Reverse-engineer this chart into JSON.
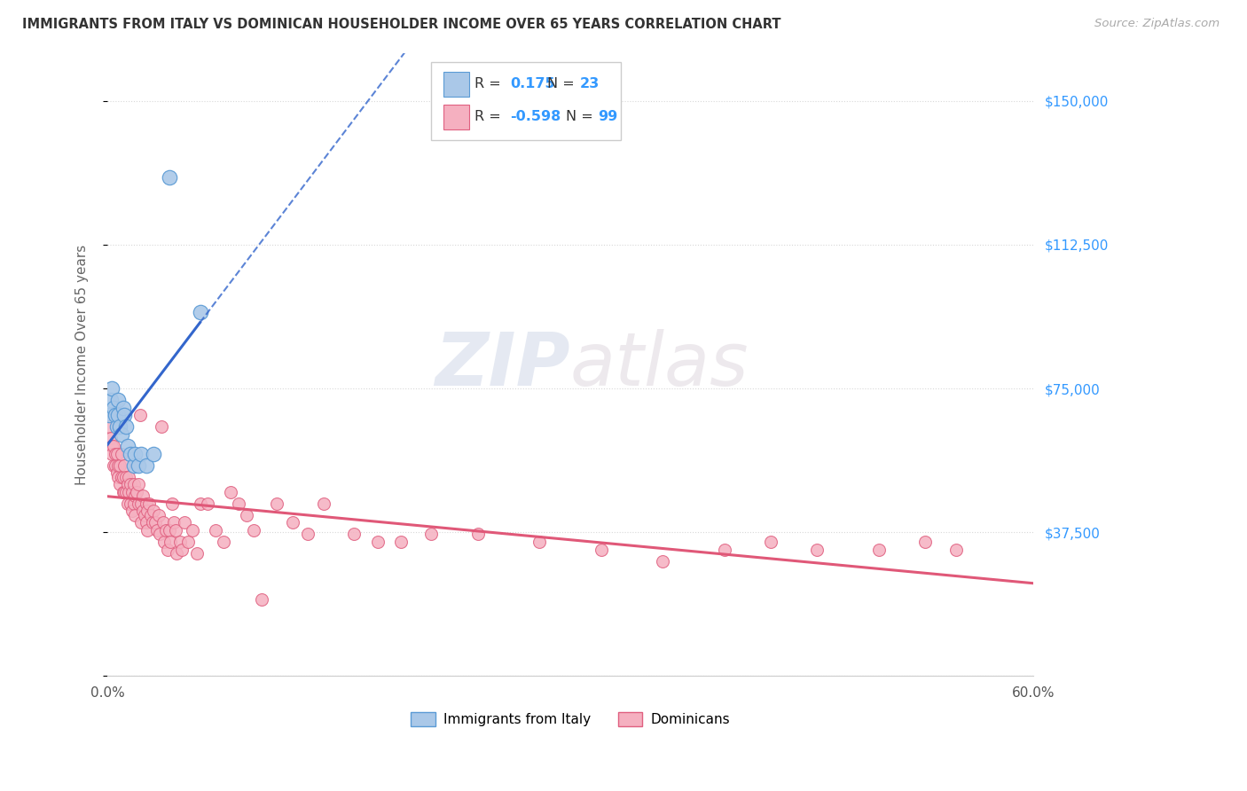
{
  "title": "IMMIGRANTS FROM ITALY VS DOMINICAN HOUSEHOLDER INCOME OVER 65 YEARS CORRELATION CHART",
  "source": "Source: ZipAtlas.com",
  "ylabel": "Householder Income Over 65 years",
  "xlim": [
    0.0,
    0.6
  ],
  "ylim": [
    0,
    162500
  ],
  "yticks": [
    0,
    37500,
    75000,
    112500,
    150000
  ],
  "ytick_labels": [
    "",
    "$37,500",
    "$75,000",
    "$112,500",
    "$150,000"
  ],
  "xticks": [
    0.0,
    0.1,
    0.2,
    0.3,
    0.4,
    0.5,
    0.6
  ],
  "xtick_labels": [
    "0.0%",
    "",
    "",
    "",
    "",
    "",
    "60.0%"
  ],
  "italy_R": 0.175,
  "italy_N": 23,
  "dom_R": -0.598,
  "dom_N": 99,
  "italy_face_color": "#aac8e8",
  "italy_edge_color": "#5b9bd5",
  "dom_face_color": "#f5b0c0",
  "dom_edge_color": "#e06080",
  "italy_line_color": "#3366cc",
  "dom_line_color": "#e05878",
  "background_color": "#ffffff",
  "grid_color": "#d8d8d8",
  "title_color": "#333333",
  "axis_label_color": "#666666",
  "right_tick_color": "#3399ff",
  "watermark_color": "#cccccc",
  "italy_scatter_x": [
    0.001,
    0.002,
    0.003,
    0.004,
    0.005,
    0.006,
    0.007,
    0.007,
    0.008,
    0.009,
    0.01,
    0.011,
    0.012,
    0.013,
    0.015,
    0.017,
    0.018,
    0.02,
    0.022,
    0.025,
    0.03,
    0.04,
    0.06
  ],
  "italy_scatter_y": [
    68000,
    72000,
    75000,
    70000,
    68000,
    65000,
    72000,
    68000,
    65000,
    63000,
    70000,
    68000,
    65000,
    60000,
    58000,
    55000,
    58000,
    55000,
    58000,
    55000,
    58000,
    130000,
    95000
  ],
  "dom_scatter_x": [
    0.001,
    0.002,
    0.003,
    0.003,
    0.004,
    0.004,
    0.005,
    0.005,
    0.006,
    0.006,
    0.007,
    0.007,
    0.008,
    0.008,
    0.009,
    0.009,
    0.01,
    0.01,
    0.011,
    0.011,
    0.012,
    0.012,
    0.013,
    0.013,
    0.014,
    0.014,
    0.015,
    0.015,
    0.016,
    0.016,
    0.017,
    0.017,
    0.018,
    0.018,
    0.019,
    0.02,
    0.02,
    0.021,
    0.022,
    0.022,
    0.023,
    0.023,
    0.024,
    0.025,
    0.025,
    0.026,
    0.026,
    0.027,
    0.028,
    0.029,
    0.03,
    0.031,
    0.032,
    0.033,
    0.034,
    0.035,
    0.036,
    0.037,
    0.038,
    0.039,
    0.04,
    0.041,
    0.042,
    0.043,
    0.044,
    0.045,
    0.047,
    0.048,
    0.05,
    0.052,
    0.055,
    0.058,
    0.06,
    0.065,
    0.07,
    0.075,
    0.08,
    0.085,
    0.09,
    0.095,
    0.1,
    0.11,
    0.12,
    0.13,
    0.14,
    0.16,
    0.175,
    0.19,
    0.21,
    0.24,
    0.28,
    0.32,
    0.36,
    0.4,
    0.43,
    0.46,
    0.5,
    0.53,
    0.55
  ],
  "dom_scatter_y": [
    65000,
    62000,
    60000,
    58000,
    60000,
    55000,
    58000,
    55000,
    58000,
    53000,
    55000,
    52000,
    55000,
    50000,
    58000,
    52000,
    52000,
    48000,
    55000,
    48000,
    52000,
    48000,
    50000,
    45000,
    52000,
    48000,
    50000,
    45000,
    48000,
    43000,
    50000,
    45000,
    47000,
    42000,
    48000,
    50000,
    45000,
    68000,
    45000,
    40000,
    47000,
    43000,
    42000,
    45000,
    40000,
    43000,
    38000,
    45000,
    42000,
    40000,
    43000,
    40000,
    38000,
    42000,
    37000,
    65000,
    40000,
    35000,
    38000,
    33000,
    38000,
    35000,
    45000,
    40000,
    38000,
    32000,
    35000,
    33000,
    40000,
    35000,
    38000,
    32000,
    45000,
    45000,
    38000,
    35000,
    48000,
    45000,
    42000,
    38000,
    20000,
    45000,
    40000,
    37000,
    45000,
    37000,
    35000,
    35000,
    37000,
    37000,
    35000,
    33000,
    30000,
    33000,
    35000,
    33000,
    33000,
    35000,
    33000
  ]
}
